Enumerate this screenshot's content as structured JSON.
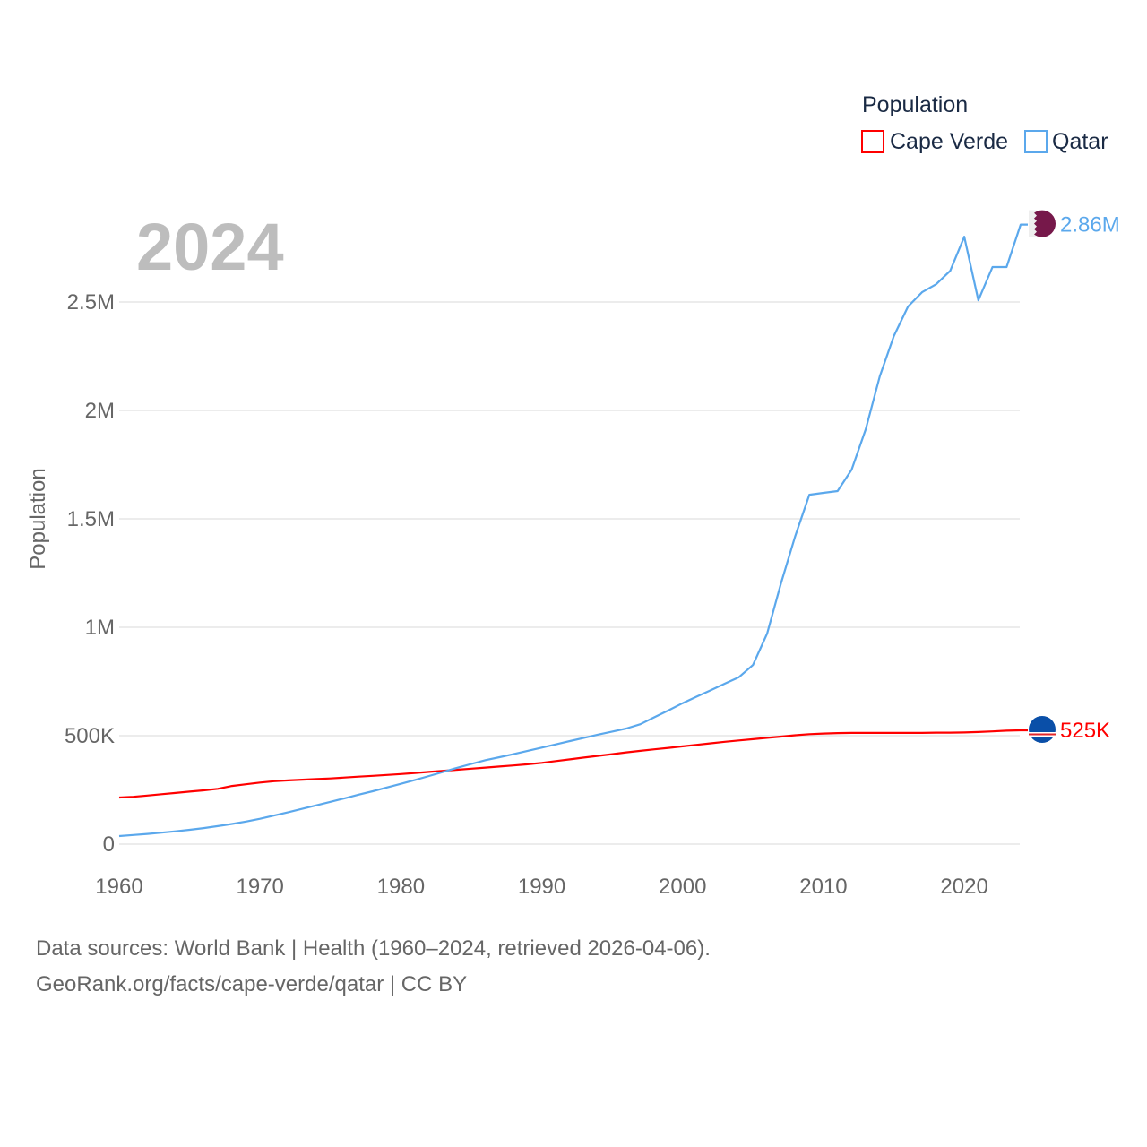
{
  "chart_data": {
    "type": "line",
    "title_year": "2024",
    "ylabel": "Population",
    "xlabel": "",
    "legend": {
      "title": "Population",
      "placement": "top-right"
    },
    "xlim": [
      1960,
      2024
    ],
    "ylim": [
      0,
      3000000
    ],
    "x_ticks": [
      1960,
      1970,
      1980,
      1990,
      2000,
      2010,
      2020
    ],
    "x_tick_labels": [
      "1960",
      "1970",
      "1980",
      "1990",
      "2000",
      "2010",
      "2020"
    ],
    "y_ticks": [
      0,
      500000,
      1000000,
      1500000,
      2000000,
      2500000
    ],
    "y_tick_labels": [
      "0",
      "500K",
      "1M",
      "1.5M",
      "2M",
      "2.5M"
    ],
    "grid": true,
    "x_start": 1960,
    "series": [
      {
        "name": "Cape Verde",
        "color": "#ff0000",
        "end_label": "525K",
        "flag": "cape-verde-flag",
        "values_thousands": [
          215,
          218,
          224,
          230,
          236,
          242,
          248,
          255,
          268,
          276,
          284,
          290,
          294,
          297,
          300,
          303,
          307,
          311,
          315,
          319,
          323,
          328,
          333,
          338,
          343,
          348,
          353,
          358,
          363,
          368,
          375,
          383,
          391,
          399,
          407,
          415,
          423,
          430,
          437,
          444,
          451,
          458,
          465,
          472,
          478,
          484,
          490,
          496,
          502,
          507,
          510,
          512,
          513,
          513,
          513,
          513,
          513,
          513,
          514,
          514,
          515,
          517,
          520,
          523,
          525
        ]
      },
      {
        "name": "Qatar",
        "color": "#5ba8ec",
        "end_label": "2.86M",
        "flag": "qatar-flag",
        "values_thousands": [
          37,
          42,
          47,
          53,
          59,
          66,
          74,
          83,
          93,
          104,
          117,
          132,
          147,
          163,
          179,
          195,
          211,
          228,
          244,
          261,
          278,
          296,
          314,
          333,
          352,
          370,
          387,
          401,
          415,
          430,
          445,
          460,
          475,
          490,
          505,
          519,
          533,
          553,
          585,
          617,
          650,
          680,
          710,
          740,
          770,
          826,
          971,
          1206,
          1421,
          1611,
          1620,
          1628,
          1727,
          1913,
          2157,
          2343,
          2479,
          2545,
          2582,
          2644,
          2801,
          2508,
          2661,
          2661,
          2857
        ]
      }
    ]
  },
  "footer": {
    "line1": "Data sources: World Bank | Health (1960–2024, retrieved 2026-04-06).",
    "line2": "GeoRank.org/facts/cape-verde/qatar | CC BY"
  }
}
